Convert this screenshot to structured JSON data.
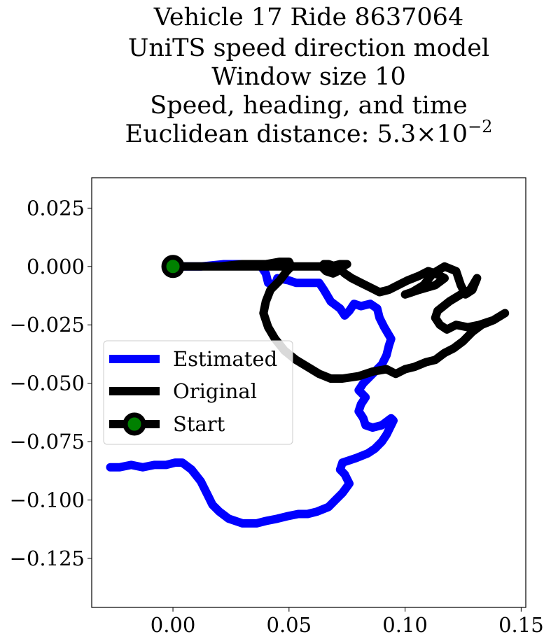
{
  "chart_data": {
    "type": "line",
    "title_lines": [
      "Vehicle 17 Ride 8637064",
      "UniTS speed direction model",
      "Window size 10",
      "Speed, heading, and time"
    ],
    "title_last_prefix": "Euclidean distance: 5.3×10",
    "title_last_exponent": "−2",
    "xlim": [
      -0.035,
      0.152
    ],
    "ylim": [
      -0.146,
      0.038
    ],
    "xticks": [
      0.0,
      0.05,
      0.1,
      0.15
    ],
    "xtick_labels": [
      "0.00",
      "0.05",
      "0.10",
      "0.15"
    ],
    "yticks": [
      0.025,
      0.0,
      -0.025,
      -0.05,
      -0.075,
      -0.1,
      -0.125
    ],
    "ytick_labels": [
      "0.025",
      "0.000",
      "−0.025",
      "−0.050",
      "−0.075",
      "−0.100",
      "−0.125"
    ],
    "legend_position": "center-left",
    "series": [
      {
        "name": "Estimated",
        "color": "#0000ff",
        "x": [
          0.0,
          0.012,
          0.022,
          0.032,
          0.038,
          0.04,
          0.041,
          0.044,
          0.045,
          0.05,
          0.053,
          0.058,
          0.063,
          0.065,
          0.068,
          0.072,
          0.074,
          0.076,
          0.078,
          0.081,
          0.085,
          0.088,
          0.089,
          0.091,
          0.094,
          0.093,
          0.092,
          0.09,
          0.085,
          0.082,
          0.08,
          0.083,
          0.081,
          0.08,
          0.082,
          0.083,
          0.086,
          0.09,
          0.094,
          0.095,
          0.094,
          0.092,
          0.09,
          0.087,
          0.084,
          0.079,
          0.076,
          0.073,
          0.072,
          0.074,
          0.075,
          0.076,
          0.073,
          0.07,
          0.067,
          0.062,
          0.058,
          0.054,
          0.049,
          0.045,
          0.04,
          0.036,
          0.03,
          0.024,
          0.02,
          0.017,
          0.015,
          0.012,
          0.008,
          0.004,
          0.001,
          -0.003,
          -0.008,
          -0.013,
          -0.018,
          -0.023,
          -0.027
        ],
        "y": [
          0.0,
          0.0,
          0.001,
          0.001,
          0.0,
          -0.003,
          -0.007,
          -0.008,
          -0.005,
          -0.006,
          -0.007,
          -0.007,
          -0.007,
          -0.01,
          -0.015,
          -0.018,
          -0.021,
          -0.019,
          -0.016,
          -0.017,
          -0.016,
          -0.018,
          -0.022,
          -0.026,
          -0.031,
          -0.034,
          -0.038,
          -0.042,
          -0.047,
          -0.05,
          -0.053,
          -0.056,
          -0.059,
          -0.062,
          -0.065,
          -0.068,
          -0.069,
          -0.068,
          -0.065,
          -0.066,
          -0.068,
          -0.072,
          -0.075,
          -0.078,
          -0.08,
          -0.082,
          -0.083,
          -0.084,
          -0.087,
          -0.089,
          -0.091,
          -0.093,
          -0.097,
          -0.1,
          -0.103,
          -0.105,
          -0.106,
          -0.106,
          -0.107,
          -0.108,
          -0.109,
          -0.11,
          -0.11,
          -0.108,
          -0.105,
          -0.102,
          -0.098,
          -0.092,
          -0.087,
          -0.084,
          -0.084,
          -0.085,
          -0.085,
          -0.086,
          -0.085,
          -0.086,
          -0.086
        ]
      },
      {
        "name": "Original",
        "color": "#000000",
        "x": [
          0.0,
          0.01,
          0.02,
          0.03,
          0.04,
          0.046,
          0.05,
          0.051,
          0.049,
          0.046,
          0.042,
          0.04,
          0.039,
          0.041,
          0.044,
          0.048,
          0.053,
          0.058,
          0.063,
          0.068,
          0.073,
          0.08,
          0.086,
          0.092,
          0.096,
          0.1,
          0.104,
          0.109,
          0.113,
          0.117,
          0.121,
          0.125,
          0.129,
          0.133,
          0.138,
          0.143,
          0.138,
          0.132,
          0.127,
          0.122,
          0.118,
          0.115,
          0.113,
          0.114,
          0.119,
          0.124,
          0.128,
          0.131,
          0.129,
          0.126,
          0.124,
          0.122,
          0.117,
          0.112,
          0.108,
          0.103,
          0.1,
          0.106,
          0.113,
          0.117,
          0.113,
          0.11,
          0.106,
          0.101,
          0.097,
          0.093,
          0.089,
          0.085,
          0.081,
          0.077,
          0.074,
          0.072,
          0.07,
          0.067,
          0.065,
          0.064,
          0.066,
          0.069,
          0.071,
          0.073,
          0.075,
          0.072,
          0.068,
          0.061,
          0.053,
          0.045,
          0.038,
          0.03,
          0.022,
          0.014,
          0.006,
          0.0
        ],
        "y": [
          0.0,
          0.0,
          0.0,
          0.001,
          0.001,
          0.002,
          0.002,
          0.0,
          -0.002,
          -0.006,
          -0.01,
          -0.015,
          -0.02,
          -0.026,
          -0.031,
          -0.036,
          -0.04,
          -0.043,
          -0.046,
          -0.048,
          -0.048,
          -0.047,
          -0.045,
          -0.044,
          -0.046,
          -0.044,
          -0.043,
          -0.041,
          -0.04,
          -0.037,
          -0.035,
          -0.032,
          -0.028,
          -0.025,
          -0.023,
          -0.02,
          -0.023,
          -0.025,
          -0.026,
          -0.025,
          -0.027,
          -0.025,
          -0.022,
          -0.019,
          -0.015,
          -0.012,
          -0.01,
          -0.005,
          -0.01,
          -0.012,
          -0.008,
          -0.002,
          0.0,
          -0.003,
          -0.008,
          -0.011,
          -0.012,
          -0.01,
          -0.008,
          -0.005,
          -0.003,
          -0.002,
          -0.004,
          -0.006,
          -0.008,
          -0.01,
          -0.011,
          -0.009,
          -0.007,
          -0.005,
          -0.003,
          -0.001,
          0.0,
          0.001,
          0.001,
          0.0,
          -0.002,
          -0.003,
          -0.002,
          0.0,
          0.001,
          0.001,
          0.0,
          0.0,
          0.0,
          0.0,
          0.0,
          0.0,
          0.0,
          0.0,
          0.0,
          0.0
        ]
      },
      {
        "name": "Start",
        "color": "#000000",
        "marker_color": "#008000",
        "x": [
          0.0
        ],
        "y": [
          0.0
        ]
      }
    ],
    "grid": false
  }
}
